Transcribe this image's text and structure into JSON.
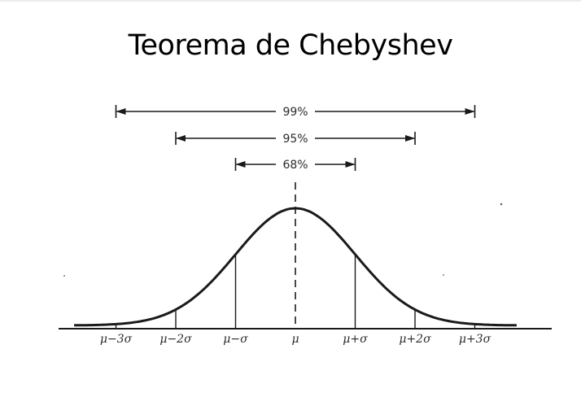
{
  "slide": {
    "title": "Teorema de Chebyshev"
  },
  "ranges": [
    {
      "label": "99%",
      "from_sigma": -3,
      "to_sigma": 3
    },
    {
      "label": "95%",
      "from_sigma": -2,
      "to_sigma": 2
    },
    {
      "label": "68%",
      "from_sigma": -1,
      "to_sigma": 1
    }
  ],
  "axis_ticks": [
    {
      "label": "μ−3σ",
      "sigma": -3
    },
    {
      "label": "μ−2σ",
      "sigma": -2
    },
    {
      "label": "μ−σ",
      "sigma": -1
    },
    {
      "label": "μ",
      "sigma": 0
    },
    {
      "label": "μ+σ",
      "sigma": 1
    },
    {
      "label": "μ+2σ",
      "sigma": 2
    },
    {
      "label": "μ+3σ",
      "sigma": 3
    }
  ],
  "colors": {
    "ink": "#1a1a1a",
    "background": "#ffffff"
  }
}
